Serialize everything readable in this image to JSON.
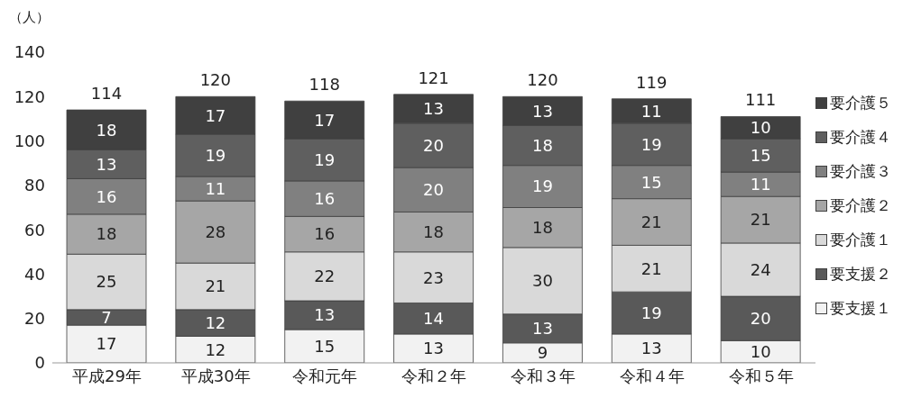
{
  "chart_data": {
    "type": "bar",
    "stacked": true,
    "ylabel": "（人）",
    "categories": [
      "平成29年",
      "平成30年",
      "令和元年",
      "令和２年",
      "令和３年",
      "令和４年",
      "令和５年"
    ],
    "series": [
      {
        "name": "要支援１",
        "color": "#f2f2f2",
        "values": [
          17,
          12,
          15,
          13,
          9,
          13,
          10
        ]
      },
      {
        "name": "要支援２",
        "color": "#595959",
        "values": [
          7,
          12,
          13,
          14,
          13,
          19,
          20
        ]
      },
      {
        "name": "要介護１",
        "color": "#d9d9d9",
        "values": [
          25,
          21,
          22,
          23,
          30,
          21,
          24
        ]
      },
      {
        "name": "要介護２",
        "color": "#a6a6a6",
        "values": [
          18,
          28,
          16,
          18,
          18,
          21,
          21
        ]
      },
      {
        "name": "要介護３",
        "color": "#808080",
        "values": [
          16,
          11,
          16,
          20,
          19,
          15,
          11
        ]
      },
      {
        "name": "要介護４",
        "color": "#5f5f5f",
        "values": [
          13,
          19,
          19,
          20,
          18,
          19,
          15
        ]
      },
      {
        "name": "要介護５",
        "color": "#404040",
        "values": [
          18,
          17,
          17,
          13,
          13,
          11,
          10
        ]
      }
    ],
    "totals": [
      "114",
      "120",
      "118",
      "121",
      "120",
      "119",
      "111"
    ],
    "ylim": [
      0,
      140
    ],
    "yticks": [
      0,
      20,
      40,
      60,
      80,
      100,
      120,
      140
    ],
    "data_labels": true,
    "legend": "right"
  }
}
